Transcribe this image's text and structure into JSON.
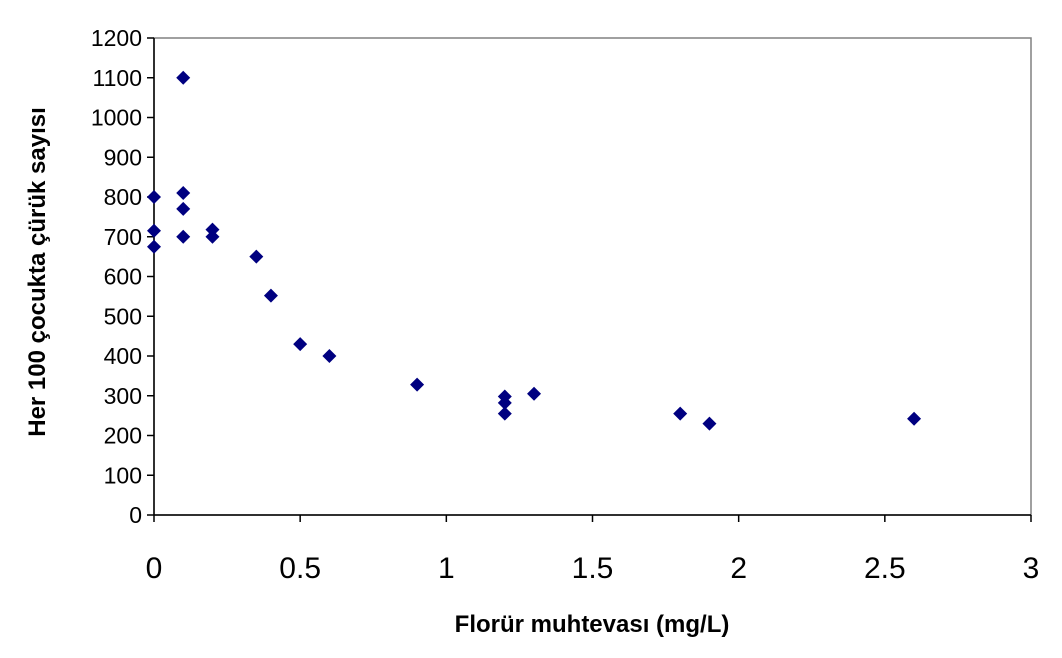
{
  "chart_data": {
    "type": "scatter",
    "title": "",
    "xlabel": "Florür muhtevası (mg/L)",
    "ylabel": "Her 100 çocukta çürük sayısı",
    "xlim": [
      0,
      3
    ],
    "ylim": [
      0,
      1200
    ],
    "x_ticks": [
      "0",
      "0.5",
      "1",
      "1.5",
      "2",
      "2.5",
      "3"
    ],
    "y_ticks": [
      "0",
      "100",
      "200",
      "300",
      "400",
      "500",
      "600",
      "700",
      "800",
      "900",
      "1000",
      "1100",
      "1200"
    ],
    "grid": false,
    "legend": "none",
    "marker": "diamond",
    "marker_color": "#000080",
    "points": [
      {
        "x": 0,
        "y": 800
      },
      {
        "x": 0,
        "y": 715
      },
      {
        "x": 0,
        "y": 675
      },
      {
        "x": 0.1,
        "y": 1100
      },
      {
        "x": 0.1,
        "y": 810
      },
      {
        "x": 0.1,
        "y": 770
      },
      {
        "x": 0.1,
        "y": 700
      },
      {
        "x": 0.2,
        "y": 718
      },
      {
        "x": 0.2,
        "y": 700
      },
      {
        "x": 0.35,
        "y": 650
      },
      {
        "x": 0.4,
        "y": 552
      },
      {
        "x": 0.5,
        "y": 430
      },
      {
        "x": 0.6,
        "y": 400
      },
      {
        "x": 0.9,
        "y": 328
      },
      {
        "x": 1.2,
        "y": 298
      },
      {
        "x": 1.2,
        "y": 282
      },
      {
        "x": 1.2,
        "y": 255
      },
      {
        "x": 1.3,
        "y": 305
      },
      {
        "x": 1.8,
        "y": 255
      },
      {
        "x": 1.9,
        "y": 230
      },
      {
        "x": 2.6,
        "y": 242
      }
    ]
  }
}
